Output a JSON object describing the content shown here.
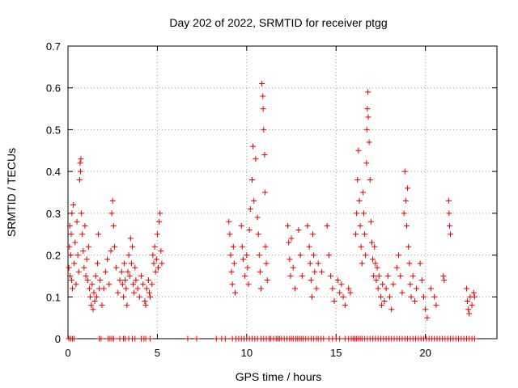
{
  "chart_data": {
    "type": "scatter",
    "title": "Day 202 of 2022, SRMTID for receiver ptgg",
    "xlabel": "GPS time / hours",
    "ylabel": "SRMTID / TECUs",
    "xlim": [
      0,
      24
    ],
    "ylim": [
      0,
      0.7
    ],
    "xticks": [
      0,
      5,
      10,
      15,
      20
    ],
    "yticks": [
      0,
      0.1,
      0.2,
      0.3,
      0.4,
      0.5,
      0.6,
      0.7
    ],
    "xtick_labels": [
      "0",
      "5",
      "10",
      "15",
      "20"
    ],
    "ytick_labels": [
      "0",
      "0.1",
      "0.2",
      "0.3",
      "0.4",
      "0.5",
      "0.6",
      "0.7"
    ],
    "grid": true,
    "marker": "+",
    "color": "#e00000",
    "series": [
      {
        "name": "SRMTID",
        "points": [
          [
            0.05,
            0.17
          ],
          [
            0.08,
            0.22
          ],
          [
            0.1,
            0.27
          ],
          [
            0.12,
            0.15
          ],
          [
            0.15,
            0.2
          ],
          [
            0.18,
            0.25
          ],
          [
            0.2,
            0.14
          ],
          [
            0.22,
            0.3
          ],
          [
            0.25,
            0.12
          ],
          [
            0.3,
            0.32
          ],
          [
            0.35,
            0.18
          ],
          [
            0.4,
            0.23
          ],
          [
            0.45,
            0.13
          ],
          [
            0.5,
            0.28
          ],
          [
            0.55,
            0.2
          ],
          [
            0.6,
            0.16
          ],
          [
            0.65,
            0.38
          ],
          [
            0.68,
            0.42
          ],
          [
            0.7,
            0.4
          ],
          [
            0.72,
            0.43
          ],
          [
            0.75,
            0.3
          ],
          [
            0.8,
            0.25
          ],
          [
            0.85,
            0.21
          ],
          [
            0.9,
            0.17
          ],
          [
            0.95,
            0.27
          ],
          [
            1.0,
            0.15
          ],
          [
            1.05,
            0.19
          ],
          [
            1.1,
            0.14
          ],
          [
            1.15,
            0.22
          ],
          [
            1.2,
            0.12
          ],
          [
            1.25,
            0.1
          ],
          [
            1.3,
            0.08
          ],
          [
            1.35,
            0.13
          ],
          [
            1.4,
            0.07
          ],
          [
            1.45,
            0.11
          ],
          [
            1.5,
            0.09
          ],
          [
            1.55,
            0.15
          ],
          [
            1.6,
            0.1
          ],
          [
            1.65,
            0.18
          ],
          [
            1.7,
            0.25
          ],
          [
            1.75,
            0.12
          ],
          [
            1.8,
            0.14
          ],
          [
            1.9,
            0.08
          ],
          [
            2.0,
            0.12
          ],
          [
            2.1,
            0.16
          ],
          [
            2.2,
            0.19
          ],
          [
            2.3,
            0.13
          ],
          [
            2.4,
            0.21
          ],
          [
            2.45,
            0.3
          ],
          [
            2.5,
            0.33
          ],
          [
            2.55,
            0.27
          ],
          [
            2.6,
            0.22
          ],
          [
            2.7,
            0.17
          ],
          [
            2.8,
            0.11
          ],
          [
            2.9,
            0.14
          ],
          [
            3.0,
            0.16
          ],
          [
            3.05,
            0.13
          ],
          [
            3.1,
            0.1
          ],
          [
            3.15,
            0.18
          ],
          [
            3.2,
            0.14
          ],
          [
            3.25,
            0.12
          ],
          [
            3.3,
            0.08
          ],
          [
            3.35,
            0.16
          ],
          [
            3.4,
            0.2
          ],
          [
            3.45,
            0.15
          ],
          [
            3.5,
            0.24
          ],
          [
            3.55,
            0.18
          ],
          [
            3.6,
            0.22
          ],
          [
            3.65,
            0.13
          ],
          [
            3.7,
            0.11
          ],
          [
            3.75,
            0.17
          ],
          [
            3.8,
            0.14
          ],
          [
            3.9,
            0.12
          ],
          [
            4.0,
            0.1
          ],
          [
            4.1,
            0.15
          ],
          [
            4.2,
            0.13
          ],
          [
            4.3,
            0.09
          ],
          [
            4.35,
            0.08
          ],
          [
            4.4,
            0.12
          ],
          [
            4.5,
            0.14
          ],
          [
            4.55,
            0.11
          ],
          [
            4.6,
            0.1
          ],
          [
            4.7,
            0.13
          ],
          [
            4.75,
            0.2
          ],
          [
            4.8,
            0.18
          ],
          [
            4.85,
            0.22
          ],
          [
            4.9,
            0.16
          ],
          [
            4.95,
            0.19
          ],
          [
            5.0,
            0.25
          ],
          [
            5.05,
            0.17
          ],
          [
            5.1,
            0.28
          ],
          [
            5.15,
            0.3
          ],
          [
            5.2,
            0.21
          ],
          [
            5.25,
            0.18
          ],
          [
            9.0,
            0.28
          ],
          [
            9.05,
            0.25
          ],
          [
            9.1,
            0.2
          ],
          [
            9.15,
            0.16
          ],
          [
            9.2,
            0.13
          ],
          [
            9.25,
            0.22
          ],
          [
            9.3,
            0.18
          ],
          [
            9.35,
            0.11
          ],
          [
            9.7,
            0.27
          ],
          [
            9.75,
            0.22
          ],
          [
            9.8,
            0.19
          ],
          [
            9.9,
            0.15
          ],
          [
            10.0,
            0.2
          ],
          [
            10.05,
            0.17
          ],
          [
            10.1,
            0.13
          ],
          [
            10.15,
            0.26
          ],
          [
            10.2,
            0.31
          ],
          [
            10.3,
            0.38
          ],
          [
            10.35,
            0.46
          ],
          [
            10.4,
            0.33
          ],
          [
            10.5,
            0.43
          ],
          [
            10.6,
            0.29
          ],
          [
            10.65,
            0.25
          ],
          [
            10.7,
            0.2
          ],
          [
            10.75,
            0.16
          ],
          [
            10.8,
            0.12
          ],
          [
            10.85,
            0.61
          ],
          [
            10.9,
            0.58
          ],
          [
            10.92,
            0.55
          ],
          [
            10.95,
            0.5
          ],
          [
            11.0,
            0.44
          ],
          [
            11.02,
            0.35
          ],
          [
            11.05,
            0.22
          ],
          [
            11.1,
            0.18
          ],
          [
            11.15,
            0.14
          ],
          [
            12.3,
            0.27
          ],
          [
            12.35,
            0.23
          ],
          [
            12.4,
            0.19
          ],
          [
            12.45,
            0.15
          ],
          [
            12.5,
            0.24
          ],
          [
            12.6,
            0.17
          ],
          [
            12.7,
            0.12
          ],
          [
            12.9,
            0.26
          ],
          [
            13.0,
            0.2
          ],
          [
            13.1,
            0.15
          ],
          [
            13.4,
            0.27
          ],
          [
            13.5,
            0.22
          ],
          [
            13.55,
            0.18
          ],
          [
            13.6,
            0.14
          ],
          [
            13.65,
            0.1
          ],
          [
            13.7,
            0.25
          ],
          [
            13.75,
            0.2
          ],
          [
            13.8,
            0.16
          ],
          [
            13.9,
            0.12
          ],
          [
            14.0,
            0.18
          ],
          [
            14.2,
            0.16
          ],
          [
            14.5,
            0.27
          ],
          [
            14.6,
            0.2
          ],
          [
            14.7,
            0.15
          ],
          [
            14.8,
            0.12
          ],
          [
            14.9,
            0.09
          ],
          [
            15.1,
            0.14
          ],
          [
            15.2,
            0.11
          ],
          [
            15.3,
            0.13
          ],
          [
            15.4,
            0.1
          ],
          [
            15.5,
            0.08
          ],
          [
            15.7,
            0.12
          ],
          [
            15.8,
            0.11
          ],
          [
            16.1,
            0.25
          ],
          [
            16.15,
            0.3
          ],
          [
            16.2,
            0.38
          ],
          [
            16.25,
            0.45
          ],
          [
            16.3,
            0.33
          ],
          [
            16.35,
            0.27
          ],
          [
            16.4,
            0.22
          ],
          [
            16.45,
            0.18
          ],
          [
            16.5,
            0.35
          ],
          [
            16.55,
            0.3
          ],
          [
            16.6,
            0.25
          ],
          [
            16.65,
            0.2
          ],
          [
            16.7,
            0.42
          ],
          [
            16.72,
            0.5
          ],
          [
            16.75,
            0.55
          ],
          [
            16.78,
            0.59
          ],
          [
            16.8,
            0.53
          ],
          [
            16.85,
            0.47
          ],
          [
            16.9,
            0.38
          ],
          [
            16.95,
            0.28
          ],
          [
            17.0,
            0.23
          ],
          [
            17.05,
            0.19
          ],
          [
            17.1,
            0.15
          ],
          [
            17.15,
            0.22
          ],
          [
            17.2,
            0.18
          ],
          [
            17.25,
            0.14
          ],
          [
            17.3,
            0.17
          ],
          [
            17.35,
            0.12
          ],
          [
            17.4,
            0.15
          ],
          [
            17.5,
            0.1
          ],
          [
            17.55,
            0.08
          ],
          [
            17.6,
            0.13
          ],
          [
            17.7,
            0.09
          ],
          [
            17.8,
            0.12
          ],
          [
            17.9,
            0.15
          ],
          [
            18.0,
            0.1
          ],
          [
            18.1,
            0.07
          ],
          [
            18.2,
            0.13
          ],
          [
            18.4,
            0.17
          ],
          [
            18.5,
            0.2
          ],
          [
            18.6,
            0.15
          ],
          [
            18.7,
            0.11
          ],
          [
            18.8,
            0.3
          ],
          [
            18.85,
            0.4
          ],
          [
            18.9,
            0.33
          ],
          [
            18.95,
            0.27
          ],
          [
            19.0,
            0.36
          ],
          [
            19.05,
            0.22
          ],
          [
            19.1,
            0.18
          ],
          [
            19.15,
            0.13
          ],
          [
            19.2,
            0.1
          ],
          [
            19.3,
            0.15
          ],
          [
            19.4,
            0.09
          ],
          [
            19.5,
            0.12
          ],
          [
            19.7,
            0.18
          ],
          [
            19.8,
            0.14
          ],
          [
            19.9,
            0.1
          ],
          [
            20.0,
            0.07
          ],
          [
            20.1,
            0.05
          ],
          [
            20.3,
            0.12
          ],
          [
            20.5,
            0.1
          ],
          [
            20.6,
            0.08
          ],
          [
            21.0,
            0.15
          ],
          [
            21.05,
            0.14
          ],
          [
            21.3,
            0.33
          ],
          [
            21.32,
            0.3
          ],
          [
            21.35,
            0.27
          ],
          [
            21.4,
            0.25
          ],
          [
            22.3,
            0.12
          ],
          [
            22.35,
            0.09
          ],
          [
            22.4,
            0.07
          ],
          [
            22.45,
            0.06
          ],
          [
            22.5,
            0.1
          ],
          [
            22.6,
            0.08
          ],
          [
            22.7,
            0.11
          ],
          [
            22.75,
            0.1
          ]
        ],
        "zero_points": [
          0.05,
          0.15,
          0.25,
          0.35,
          1.75,
          1.85,
          2.25,
          2.35,
          2.45,
          2.55,
          2.9,
          3.1,
          3.2,
          3.4,
          3.6,
          3.75,
          4.1,
          4.25,
          4.35,
          4.6,
          6.7,
          7.2,
          8.3,
          8.6,
          8.8,
          9.2,
          9.4,
          9.55,
          9.7,
          9.85,
          10.0,
          10.15,
          10.3,
          10.45,
          10.6,
          10.8,
          10.95,
          11.1,
          11.25,
          11.35,
          11.5,
          11.65,
          11.75,
          11.85,
          11.95,
          12.1,
          12.25,
          12.4,
          12.5,
          12.6,
          12.75,
          12.85,
          12.95,
          13.05,
          13.15,
          13.3,
          13.45,
          13.6,
          13.75,
          13.9,
          14.0,
          14.15,
          14.3,
          14.6,
          14.8,
          15.0,
          15.2,
          15.5,
          15.7,
          15.85,
          15.95,
          16.05,
          16.15,
          16.25,
          16.35,
          16.45,
          16.6,
          16.75,
          16.9,
          17.05,
          17.2,
          17.35,
          17.5,
          17.65,
          17.8,
          17.95,
          18.1,
          18.25,
          18.4,
          18.55,
          18.7,
          18.85,
          19.0,
          19.15,
          19.3,
          19.45,
          19.6,
          19.75,
          19.9,
          20.05,
          20.2,
          20.35,
          20.5,
          20.65,
          20.8,
          20.95,
          21.1,
          21.25,
          21.4,
          21.55,
          21.7,
          21.85,
          22.0,
          22.15,
          22.3,
          22.45,
          22.6,
          22.75
        ]
      }
    ]
  }
}
